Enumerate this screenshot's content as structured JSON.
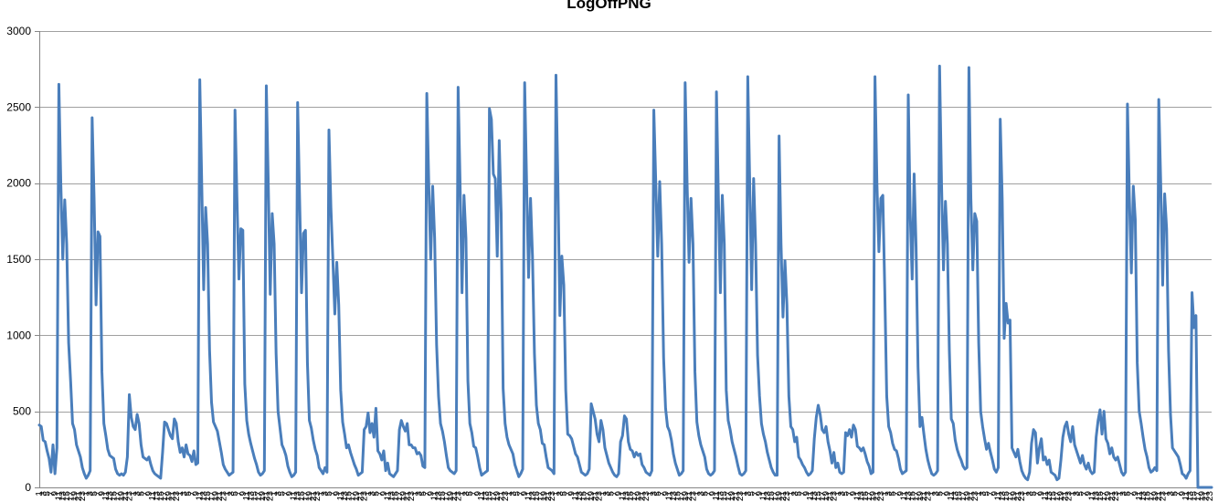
{
  "chart_data": {
    "type": "line",
    "title": "LogOffPNG",
    "xlabel": "",
    "ylabel": "",
    "ylim": [
      0,
      3000
    ],
    "yticks": [
      0,
      500,
      1000,
      1500,
      2000,
      2500,
      3000
    ],
    "grid": true,
    "legend": "none",
    "colors": {
      "series": "#4a7ebb",
      "grid": "#a0a0a0",
      "axis": "#868686"
    },
    "xtick_labels": [
      "1",
      "3",
      "5",
      "7",
      "9",
      "11",
      "13",
      "15",
      "17",
      "19",
      "21",
      "23",
      "1",
      "3",
      "5",
      "7",
      "9",
      "11",
      "13",
      "15",
      "17",
      "19",
      "21",
      "23",
      "1",
      "3",
      "5",
      "7",
      "9",
      "11",
      "13",
      "15",
      "17",
      "19",
      "21",
      "23",
      "1",
      "3",
      "5",
      "7",
      "9",
      "11",
      "13",
      "15",
      "17",
      "19",
      "21",
      "23",
      "1",
      "3",
      "5",
      "7",
      "9",
      "11",
      "13",
      "15",
      "17",
      "19",
      "21",
      "23",
      "1",
      "3",
      "5",
      "7",
      "9",
      "11",
      "13",
      "15",
      "17",
      "19",
      "21",
      "23",
      "1",
      "3",
      "5",
      "7",
      "9",
      "11",
      "13",
      "15",
      "17",
      "19",
      "21",
      "23",
      "1",
      "3",
      "5",
      "7",
      "9",
      "11",
      "13",
      "15",
      "17",
      "19",
      "21",
      "23",
      "1",
      "3",
      "5",
      "7",
      "9",
      "11",
      "13",
      "15",
      "17",
      "19",
      "21",
      "23",
      "1",
      "3",
      "5",
      "7",
      "9",
      "11",
      "13",
      "15",
      "17",
      "19",
      "21",
      "23",
      "1",
      "3",
      "5",
      "7",
      "9",
      "11",
      "13",
      "15",
      "17",
      "19",
      "21",
      "23",
      "1",
      "3",
      "5",
      "7",
      "9",
      "11",
      "13",
      "15",
      "17",
      "19",
      "21",
      "23",
      "1",
      "3",
      "5",
      "7",
      "9",
      "11",
      "13",
      "15",
      "17",
      "19",
      "21",
      "23",
      "1",
      "3",
      "5",
      "7",
      "9",
      "11",
      "13",
      "15",
      "17",
      "19",
      "21",
      "23",
      "1",
      "3",
      "5",
      "7",
      "9",
      "11",
      "13",
      "15",
      "17",
      "19",
      "21",
      "23",
      "1",
      "3",
      "5",
      "7",
      "9",
      "11",
      "13",
      "15",
      "17",
      "19",
      "21",
      "23",
      "1",
      "3",
      "5",
      "7",
      "9",
      "11",
      "13",
      "15",
      "17",
      "19",
      "21",
      "23",
      "1",
      "3",
      "5",
      "7",
      "9",
      "11",
      "13",
      "15",
      "17",
      "19",
      "21",
      "23",
      "1",
      "3",
      "5",
      "7",
      "9",
      "11",
      "13",
      "15",
      "17",
      "19",
      "21",
      "23",
      "1",
      "3",
      "5",
      "7",
      "9",
      "11",
      "13",
      "15",
      "17",
      "19",
      "21",
      "23",
      "1",
      "3",
      "5",
      "7",
      "9",
      "11",
      "13",
      "15",
      "17",
      "19",
      "21",
      "23",
      "1",
      "3",
      "5",
      "7",
      "9",
      "11",
      "13",
      "15",
      "17",
      "19",
      "21",
      "23",
      "1",
      "3",
      "5",
      "7",
      "9",
      "11",
      "13",
      "15",
      "17",
      "19",
      "21",
      "23",
      "1",
      "3",
      "5",
      "7",
      "9",
      "11",
      "13",
      "15",
      "17",
      "19",
      "21",
      "23",
      "1",
      "3",
      "5",
      "7",
      "9",
      "11",
      "13",
      "15",
      "17",
      "19",
      "21",
      "23",
      "1",
      "3",
      "5",
      "7",
      "9",
      "11",
      "13",
      "15",
      "17",
      "19",
      "21",
      "23",
      "1",
      "3",
      "5",
      "7",
      "9",
      "11",
      "13",
      "15",
      "17",
      "19",
      "21",
      "23",
      "1",
      "3",
      "5",
      "7",
      "9",
      "11",
      "13",
      "15",
      "17",
      "19",
      "21",
      "23",
      "1",
      "3",
      "5",
      "7",
      "9",
      "11",
      "13",
      "15",
      "17",
      "19",
      "21",
      "23",
      "1",
      "3",
      "5",
      "7",
      "9",
      "11",
      "13",
      "15",
      "17",
      "19",
      "21",
      "23",
      "1",
      "3",
      "5",
      "7",
      "9",
      "11",
      "13",
      "15",
      "17",
      "19",
      "21",
      "23",
      "1",
      "3",
      "5",
      "7",
      "9",
      "11",
      "13",
      "15",
      "17",
      "19",
      "21",
      "23",
      "1",
      "3",
      "5"
    ],
    "series": [
      {
        "values": [
          410,
          400,
          310,
          300,
          240,
          190,
          100,
          280,
          90,
          260,
          2650,
          2000,
          1500,
          1890,
          1600,
          950,
          700,
          420,
          380,
          280,
          240,
          200,
          130,
          90,
          60,
          80,
          110,
          2430,
          1900,
          1200,
          1680,
          1650,
          760,
          420,
          340,
          250,
          210,
          200,
          190,
          120,
          90,
          80,
          90,
          80,
          100,
          200,
          610,
          460,
          400,
          380,
          480,
          420,
          280,
          200,
          190,
          180,
          200,
          150,
          110,
          90,
          80,
          70,
          60,
          230,
          430,
          420,
          380,
          340,
          320,
          450,
          420,
          300,
          230,
          260,
          200,
          280,
          220,
          210,
          170,
          240,
          150,
          160,
          2680,
          2000,
          1300,
          1840,
          1600,
          900,
          560,
          430,
          400,
          370,
          300,
          230,
          150,
          120,
          100,
          80,
          90,
          100,
          2480,
          1900,
          1370,
          1700,
          1690,
          680,
          440,
          350,
          290,
          240,
          190,
          150,
          100,
          80,
          90,
          110,
          2640,
          2000,
          1270,
          1800,
          1600,
          880,
          500,
          390,
          280,
          250,
          210,
          140,
          100,
          70,
          80,
          100,
          2530,
          1900,
          1280,
          1670,
          1690,
          820,
          440,
          390,
          310,
          250,
          210,
          130,
          110,
          90,
          130,
          100,
          2350,
          1840,
          1500,
          1140,
          1480,
          1200,
          640,
          430,
          350,
          260,
          280,
          230,
          190,
          150,
          120,
          80,
          90,
          100,
          380,
          400,
          490,
          360,
          420,
          330,
          520,
          240,
          220,
          180,
          240,
          110,
          160,
          90,
          80,
          70,
          90,
          110,
          380,
          440,
          400,
          370,
          420,
          280,
          280,
          260,
          260,
          220,
          230,
          210,
          140,
          130,
          2590,
          2000,
          1500,
          1980,
          1640,
          940,
          600,
          420,
          370,
          300,
          210,
          130,
          110,
          100,
          90,
          110,
          2630,
          2000,
          1280,
          1920,
          1640,
          700,
          420,
          360,
          270,
          260,
          200,
          130,
          80,
          90,
          100,
          110,
          2490,
          2420,
          2060,
          2030,
          1520,
          2280,
          1800,
          650,
          420,
          330,
          280,
          250,
          220,
          150,
          110,
          70,
          90,
          120,
          2660,
          2000,
          1380,
          1900,
          1520,
          880,
          540,
          420,
          380,
          290,
          280,
          200,
          130,
          120,
          110,
          90,
          2710,
          2000,
          1130,
          1520,
          1330,
          640,
          350,
          340,
          320,
          270,
          220,
          200,
          150,
          100,
          90,
          80,
          90,
          120,
          550,
          500,
          450,
          350,
          300,
          440,
          380,
          260,
          210,
          160,
          130,
          100,
          80,
          70,
          90,
          300,
          340,
          470,
          450,
          300,
          250,
          240,
          200,
          230,
          210,
          220,
          150,
          130,
          100,
          90,
          80,
          110,
          2480,
          2000,
          1520,
          2010,
          1600,
          850,
          520,
          400,
          370,
          310,
          220,
          160,
          120,
          80,
          90,
          110,
          2660,
          2000,
          1480,
          1900,
          1600,
          760,
          430,
          340,
          280,
          240,
          200,
          120,
          90,
          80,
          90,
          110,
          2600,
          1900,
          1280,
          1920,
          1600,
          640,
          440,
          380,
          300,
          250,
          200,
          140,
          90,
          80,
          90,
          110,
          2700,
          2000,
          1300,
          2030,
          1600,
          870,
          600,
          420,
          350,
          300,
          230,
          180,
          130,
          100,
          80,
          80,
          2310,
          1600,
          1120,
          1490,
          1200,
          600,
          400,
          380,
          300,
          330,
          200,
          180,
          150,
          130,
          100,
          80,
          90,
          110,
          320,
          460,
          540,
          480,
          380,
          360,
          400,
          300,
          240,
          160,
          230,
          130,
          160,
          100,
          90,
          100,
          360,
          340,
          380,
          330,
          410,
          380,
          270,
          260,
          240,
          260,
          220,
          170,
          140,
          90,
          100,
          2700,
          2000,
          1550,
          1900,
          1920,
          1300,
          600,
          400,
          360,
          290,
          250,
          240,
          190,
          120,
          90,
          100,
          110,
          2580,
          1800,
          1370,
          2060,
          1580,
          790,
          400,
          460,
          350,
          250,
          180,
          130,
          90,
          80,
          90,
          110,
          2770,
          2000,
          1430,
          1880,
          1600,
          900,
          450,
          420,
          310,
          250,
          210,
          180,
          140,
          120,
          130,
          2760,
          1900,
          1430,
          1800,
          1750,
          950,
          500,
          400,
          320,
          250,
          290,
          230,
          180,
          120,
          100,
          130,
          2420,
          1900,
          980,
          1210,
          1080,
          1100,
          260,
          230,
          200,
          250,
          170,
          110,
          80,
          60,
          50,
          100,
          290,
          380,
          360,
          160,
          260,
          320,
          180,
          200,
          150,
          180,
          100,
          90,
          80,
          50,
          60,
          180,
          330,
          400,
          430,
          350,
          300,
          400,
          280,
          240,
          200,
          160,
          210,
          150,
          120,
          160,
          110,
          90,
          100,
          330,
          440,
          510,
          350,
          500,
          320,
          290,
          220,
          260,
          200,
          180,
          200,
          150,
          100,
          80,
          100,
          2520,
          1900,
          1410,
          1980,
          1760,
          820,
          500,
          420,
          330,
          250,
          200,
          130,
          100,
          110,
          130,
          110,
          2550,
          2000,
          1330,
          1930,
          1700,
          900,
          480,
          260,
          240,
          220,
          200,
          150,
          90,
          80,
          60,
          90,
          110,
          1280,
          1050,
          1130,
          0,
          0,
          0,
          0,
          0,
          0,
          0,
          0
        ]
      }
    ]
  }
}
